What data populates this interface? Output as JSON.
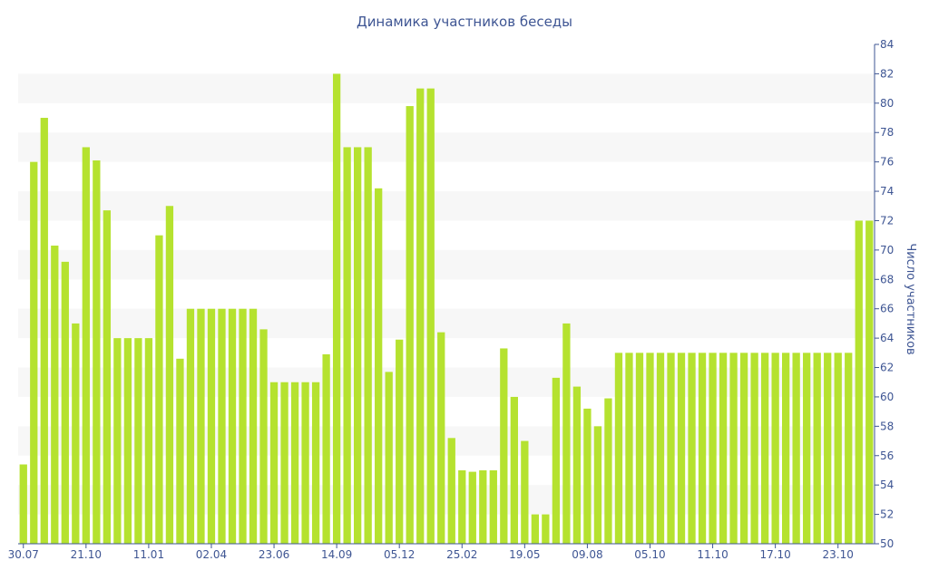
{
  "chart_data": {
    "type": "bar",
    "title": "Динамика участников беседы",
    "xlabel": "",
    "ylabel": "Число участников",
    "ylim": [
      50,
      84
    ],
    "yticks": [
      50,
      52,
      54,
      56,
      58,
      60,
      62,
      64,
      66,
      68,
      70,
      72,
      74,
      76,
      78,
      80,
      82,
      84
    ],
    "y_axis_position": "right",
    "grid": "alternating horizontal bands",
    "bar_color": "#b5e22f",
    "band_color": "#f7f7f7",
    "text_color": "#3e5593",
    "x_tick_labels": [
      {
        "label": "30.07",
        "index": 0
      },
      {
        "label": "21.10",
        "index": 6
      },
      {
        "label": "11.01",
        "index": 12
      },
      {
        "label": "02.04",
        "index": 18
      },
      {
        "label": "23.06",
        "index": 24
      },
      {
        "label": "14.09",
        "index": 30
      },
      {
        "label": "05.12",
        "index": 36
      },
      {
        "label": "25.02",
        "index": 42
      },
      {
        "label": "19.05",
        "index": 48
      },
      {
        "label": "09.08",
        "index": 54
      },
      {
        "label": "05.10",
        "index": 60
      },
      {
        "label": "11.10",
        "index": 66
      },
      {
        "label": "17.10",
        "index": 72
      },
      {
        "label": "23.10",
        "index": 78
      }
    ],
    "values": [
      55.4,
      76,
      79,
      70.3,
      69.2,
      65,
      77,
      76.1,
      72.7,
      64,
      64,
      64,
      64,
      71,
      73,
      62.6,
      66,
      66,
      66,
      66,
      66,
      66,
      66,
      64.6,
      61,
      61,
      61,
      61,
      61,
      62.9,
      82,
      77,
      77,
      77,
      74.2,
      61.7,
      63.9,
      79.8,
      81,
      81,
      64.4,
      57.2,
      55,
      54.9,
      55,
      55,
      63.3,
      60,
      57,
      52,
      52,
      61.3,
      65,
      60.7,
      59.2,
      58,
      59.9,
      63,
      63,
      63,
      63,
      63,
      63,
      63,
      63,
      63,
      63,
      63,
      63,
      63,
      63,
      63,
      63,
      63,
      63,
      63,
      63,
      63,
      63,
      63,
      72,
      72
    ]
  }
}
